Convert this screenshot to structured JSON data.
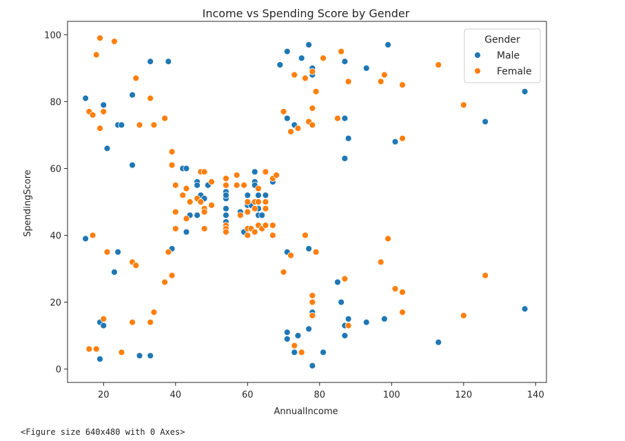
{
  "output_text": "<Figure size 640x480 with 0 Axes>",
  "chart_data": {
    "type": "scatter",
    "title": "Income vs Spending Score by Gender",
    "xlabel": "AnnualIncome",
    "ylabel": "SpendingScore",
    "xlim": [
      10,
      143
    ],
    "ylim": [
      -4,
      104
    ],
    "xticks": [
      20,
      40,
      60,
      80,
      100,
      120,
      140
    ],
    "yticks": [
      0,
      20,
      40,
      60,
      80,
      100
    ],
    "legend": {
      "title": "Gender",
      "position": "top-right"
    },
    "grid": false,
    "series": [
      {
        "name": "Male",
        "color": "#1f77b4",
        "points": [
          [
            15,
            81
          ],
          [
            15,
            39
          ],
          [
            19,
            3
          ],
          [
            19,
            14
          ],
          [
            20,
            79
          ],
          [
            20,
            13
          ],
          [
            21,
            66
          ],
          [
            23,
            29
          ],
          [
            24,
            35
          ],
          [
            24,
            73
          ],
          [
            25,
            73
          ],
          [
            28,
            61
          ],
          [
            28,
            82
          ],
          [
            30,
            4
          ],
          [
            33,
            92
          ],
          [
            33,
            4
          ],
          [
            38,
            92
          ],
          [
            39,
            36
          ],
          [
            42,
            60
          ],
          [
            43,
            60
          ],
          [
            43,
            41
          ],
          [
            44,
            46
          ],
          [
            46,
            56
          ],
          [
            46,
            55
          ],
          [
            46,
            46
          ],
          [
            47,
            52
          ],
          [
            48,
            59
          ],
          [
            48,
            51
          ],
          [
            49,
            55
          ],
          [
            54,
            55
          ],
          [
            54,
            53
          ],
          [
            54,
            51
          ],
          [
            54,
            48
          ],
          [
            54,
            46
          ],
          [
            54,
            44
          ],
          [
            54,
            41
          ],
          [
            54,
            52
          ],
          [
            58,
            47
          ],
          [
            59,
            41
          ],
          [
            60,
            52
          ],
          [
            60,
            49
          ],
          [
            61,
            49
          ],
          [
            61,
            42
          ],
          [
            62,
            59
          ],
          [
            62,
            56
          ],
          [
            62,
            55
          ],
          [
            62,
            48
          ],
          [
            63,
            52
          ],
          [
            63,
            43
          ],
          [
            63,
            48
          ],
          [
            63,
            46
          ],
          [
            64,
            46
          ],
          [
            65,
            52
          ],
          [
            67,
            56
          ],
          [
            69,
            91
          ],
          [
            71,
            95
          ],
          [
            71,
            75
          ],
          [
            71,
            35
          ],
          [
            71,
            11
          ],
          [
            71,
            9
          ],
          [
            73,
            73
          ],
          [
            73,
            5
          ],
          [
            74,
            10
          ],
          [
            75,
            93
          ],
          [
            77,
            97
          ],
          [
            77,
            36
          ],
          [
            77,
            12
          ],
          [
            78,
            90
          ],
          [
            78,
            88
          ],
          [
            78,
            89
          ],
          [
            78,
            17
          ],
          [
            78,
            1
          ],
          [
            78,
            16
          ],
          [
            81,
            5
          ],
          [
            85,
            26
          ],
          [
            86,
            20
          ],
          [
            87,
            92
          ],
          [
            87,
            75
          ],
          [
            87,
            63
          ],
          [
            87,
            13
          ],
          [
            87,
            10
          ],
          [
            88,
            69
          ],
          [
            88,
            15
          ],
          [
            93,
            90
          ],
          [
            93,
            14
          ],
          [
            98,
            15
          ],
          [
            99,
            97
          ],
          [
            101,
            68
          ],
          [
            113,
            8
          ],
          [
            126,
            74
          ],
          [
            137,
            83
          ],
          [
            137,
            18
          ]
        ]
      },
      {
        "name": "Female",
        "color": "#ff7f0e",
        "points": [
          [
            16,
            6
          ],
          [
            16,
            77
          ],
          [
            17,
            40
          ],
          [
            17,
            76
          ],
          [
            18,
            94
          ],
          [
            18,
            6
          ],
          [
            19,
            99
          ],
          [
            19,
            72
          ],
          [
            20,
            77
          ],
          [
            20,
            15
          ],
          [
            21,
            35
          ],
          [
            23,
            98
          ],
          [
            25,
            5
          ],
          [
            28,
            32
          ],
          [
            28,
            14
          ],
          [
            29,
            31
          ],
          [
            29,
            87
          ],
          [
            30,
            73
          ],
          [
            33,
            81
          ],
          [
            33,
            14
          ],
          [
            34,
            73
          ],
          [
            34,
            17
          ],
          [
            37,
            26
          ],
          [
            37,
            75
          ],
          [
            38,
            35
          ],
          [
            39,
            65
          ],
          [
            39,
            61
          ],
          [
            39,
            28
          ],
          [
            40,
            47
          ],
          [
            40,
            55
          ],
          [
            40,
            42
          ],
          [
            42,
            52
          ],
          [
            43,
            54
          ],
          [
            43,
            45
          ],
          [
            44,
            50
          ],
          [
            46,
            51
          ],
          [
            47,
            59
          ],
          [
            47,
            50
          ],
          [
            48,
            48
          ],
          [
            48,
            47
          ],
          [
            48,
            59
          ],
          [
            48,
            42
          ],
          [
            50,
            49
          ],
          [
            50,
            56
          ],
          [
            54,
            57
          ],
          [
            54,
            55
          ],
          [
            54,
            43
          ],
          [
            54,
            42
          ],
          [
            54,
            41
          ],
          [
            57,
            58
          ],
          [
            57,
            55
          ],
          [
            58,
            46
          ],
          [
            59,
            55
          ],
          [
            60,
            50
          ],
          [
            60,
            47
          ],
          [
            60,
            42
          ],
          [
            60,
            40
          ],
          [
            61,
            42
          ],
          [
            62,
            41
          ],
          [
            62,
            50
          ],
          [
            62,
            48
          ],
          [
            63,
            50
          ],
          [
            63,
            54
          ],
          [
            63,
            43
          ],
          [
            64,
            42
          ],
          [
            65,
            50
          ],
          [
            65,
            48
          ],
          [
            65,
            59
          ],
          [
            65,
            43
          ],
          [
            67,
            57
          ],
          [
            67,
            43
          ],
          [
            67,
            40
          ],
          [
            68,
            58
          ],
          [
            70,
            77
          ],
          [
            70,
            29
          ],
          [
            72,
            71
          ],
          [
            72,
            34
          ],
          [
            73,
            88
          ],
          [
            73,
            7
          ],
          [
            74,
            72
          ],
          [
            75,
            5
          ],
          [
            76,
            87
          ],
          [
            76,
            40
          ],
          [
            77,
            74
          ],
          [
            78,
            73
          ],
          [
            78,
            89
          ],
          [
            78,
            78
          ],
          [
            78,
            16
          ],
          [
            78,
            22
          ],
          [
            78,
            20
          ],
          [
            79,
            83
          ],
          [
            79,
            35
          ],
          [
            81,
            93
          ],
          [
            85,
            75
          ],
          [
            86,
            95
          ],
          [
            87,
            27
          ],
          [
            88,
            86
          ],
          [
            88,
            13
          ],
          [
            97,
            86
          ],
          [
            97,
            32
          ],
          [
            98,
            88
          ],
          [
            99,
            39
          ],
          [
            101,
            24
          ],
          [
            103,
            85
          ],
          [
            103,
            69
          ],
          [
            103,
            23
          ],
          [
            103,
            17
          ],
          [
            113,
            91
          ],
          [
            120,
            79
          ],
          [
            120,
            16
          ],
          [
            126,
            28
          ]
        ]
      }
    ]
  }
}
